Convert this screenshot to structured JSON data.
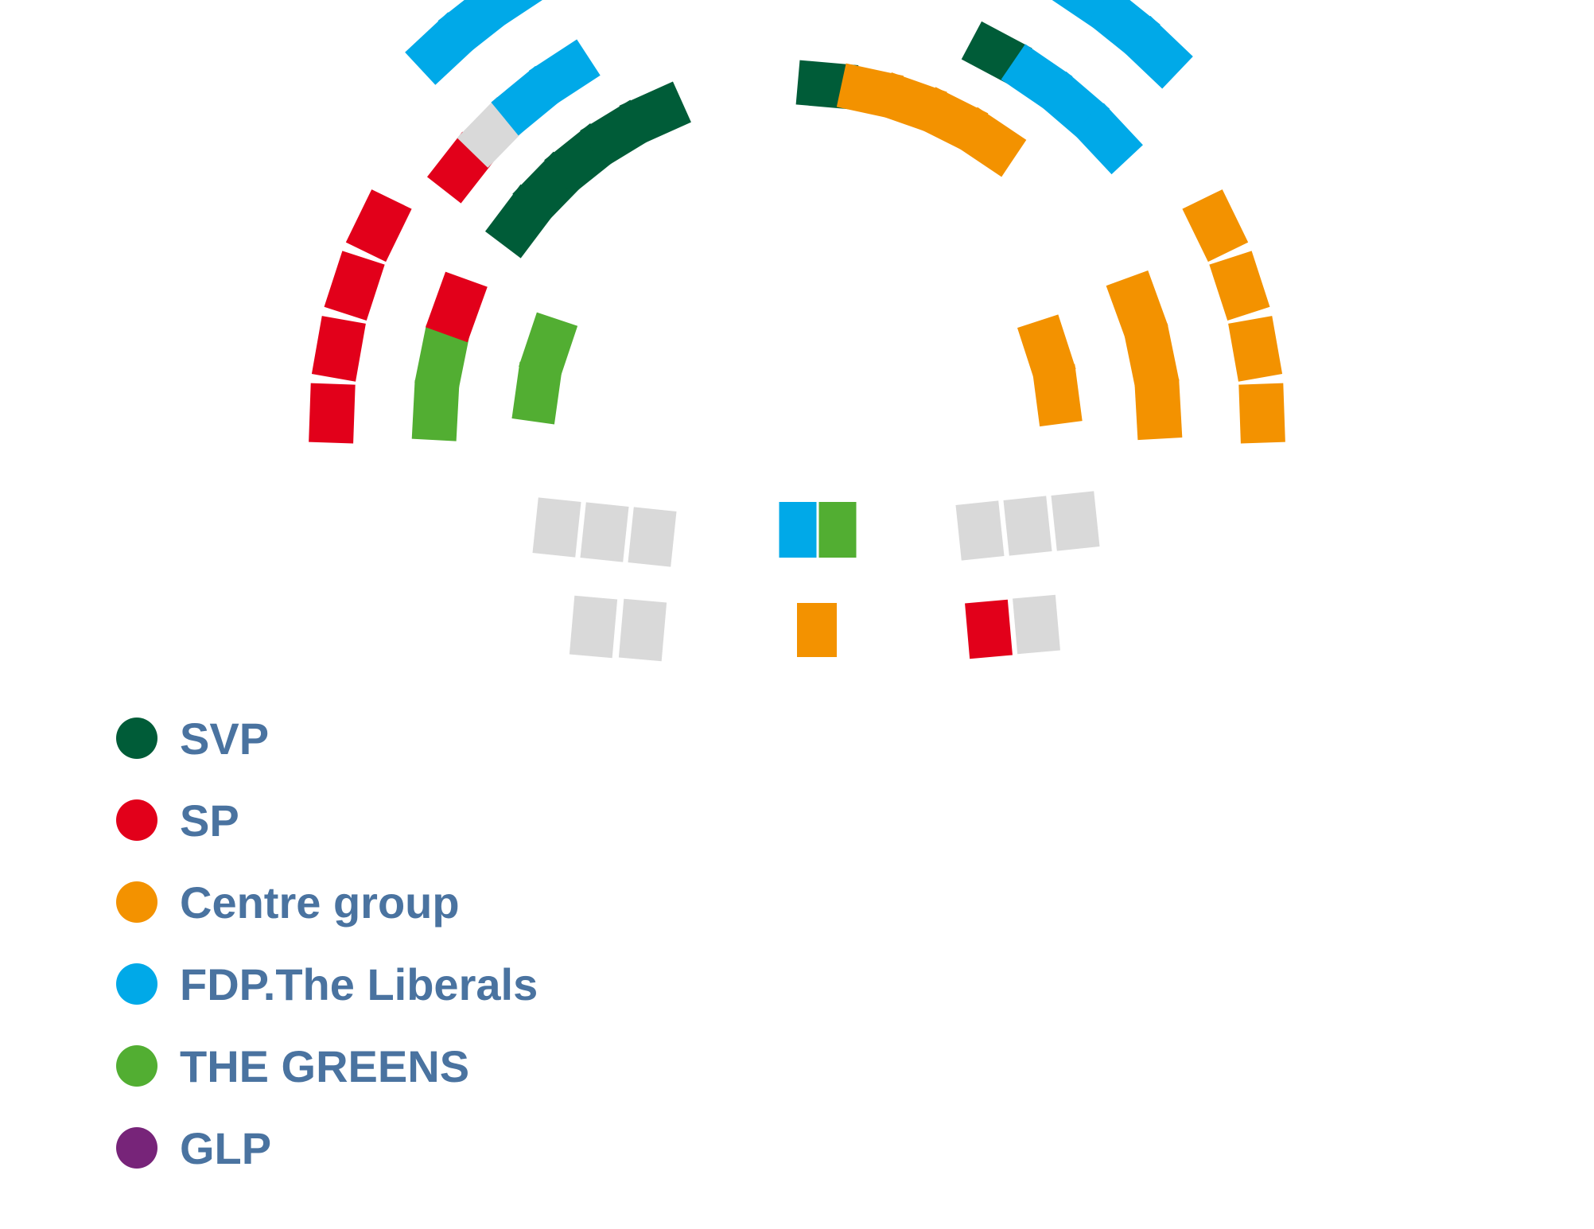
{
  "colors": {
    "SVP": "#005c38",
    "SP": "#e2001a",
    "Centre": "#f39200",
    "FDP": "#00a9e8",
    "Greens": "#52ae32",
    "GLP": "#772479",
    "empty": "#d9d9d9"
  },
  "legend": [
    {
      "key": "SVP",
      "label": "SVP"
    },
    {
      "key": "SP",
      "label": "SP"
    },
    {
      "key": "Centre",
      "label": "Centre group"
    },
    {
      "key": "FDP",
      "label": "FDP.The Liberals"
    },
    {
      "key": "Greens",
      "label": "THE GREENS"
    },
    {
      "key": "GLP",
      "label": "GLP"
    }
  ],
  "chart_data": {
    "type": "parliament",
    "rows": [
      {
        "side": "left",
        "block": "outer",
        "seats": [
          "SP",
          "SP",
          "SP",
          "SP"
        ]
      },
      {
        "side": "left",
        "block": "outer-upper",
        "seats": [
          "FDP",
          "FDP",
          "FDP"
        ]
      },
      {
        "side": "left",
        "block": "middle",
        "seats": [
          "Greens",
          "Greens",
          "SP"
        ]
      },
      {
        "side": "left",
        "block": "middle-upper",
        "seats": [
          "SP",
          "empty",
          "FDP",
          "FDP"
        ]
      },
      {
        "side": "left",
        "block": "inner",
        "seats": [
          "Greens",
          "Greens"
        ]
      },
      {
        "side": "left",
        "block": "inner-upper",
        "seats": [
          "SVP",
          "SVP",
          "SVP",
          "SVP",
          "SVP"
        ]
      },
      {
        "side": "right",
        "block": "inner-upper",
        "seats": [
          "SVP",
          "Centre",
          "Centre",
          "Centre",
          "Centre"
        ]
      },
      {
        "side": "right",
        "block": "middle-upper",
        "seats": [
          "SVP",
          "FDP",
          "FDP",
          "FDP"
        ]
      },
      {
        "side": "right",
        "block": "outer-upper",
        "seats": [
          "FDP",
          "FDP",
          "FDP"
        ]
      },
      {
        "side": "right",
        "block": "inner",
        "seats": [
          "Centre",
          "Centre"
        ]
      },
      {
        "side": "right",
        "block": "middle",
        "seats": [
          "Centre",
          "Centre",
          "Centre"
        ]
      },
      {
        "side": "right",
        "block": "outer",
        "seats": [
          "Centre",
          "Centre",
          "Centre",
          "Centre"
        ]
      },
      {
        "side": "front-left",
        "block": "front-row-1",
        "seats": [
          "empty",
          "empty",
          "empty"
        ]
      },
      {
        "side": "front-center",
        "block": "front-row-1",
        "seats": [
          "FDP",
          "Greens"
        ]
      },
      {
        "side": "front-right",
        "block": "front-row-1",
        "seats": [
          "empty",
          "empty",
          "empty"
        ]
      },
      {
        "side": "front-left",
        "block": "front-row-2",
        "seats": [
          "empty",
          "empty"
        ]
      },
      {
        "side": "front-center",
        "block": "front-row-2",
        "seats": [
          "Centre"
        ]
      },
      {
        "side": "front-right",
        "block": "front-row-2",
        "seats": [
          "SP",
          "empty"
        ]
      }
    ]
  }
}
